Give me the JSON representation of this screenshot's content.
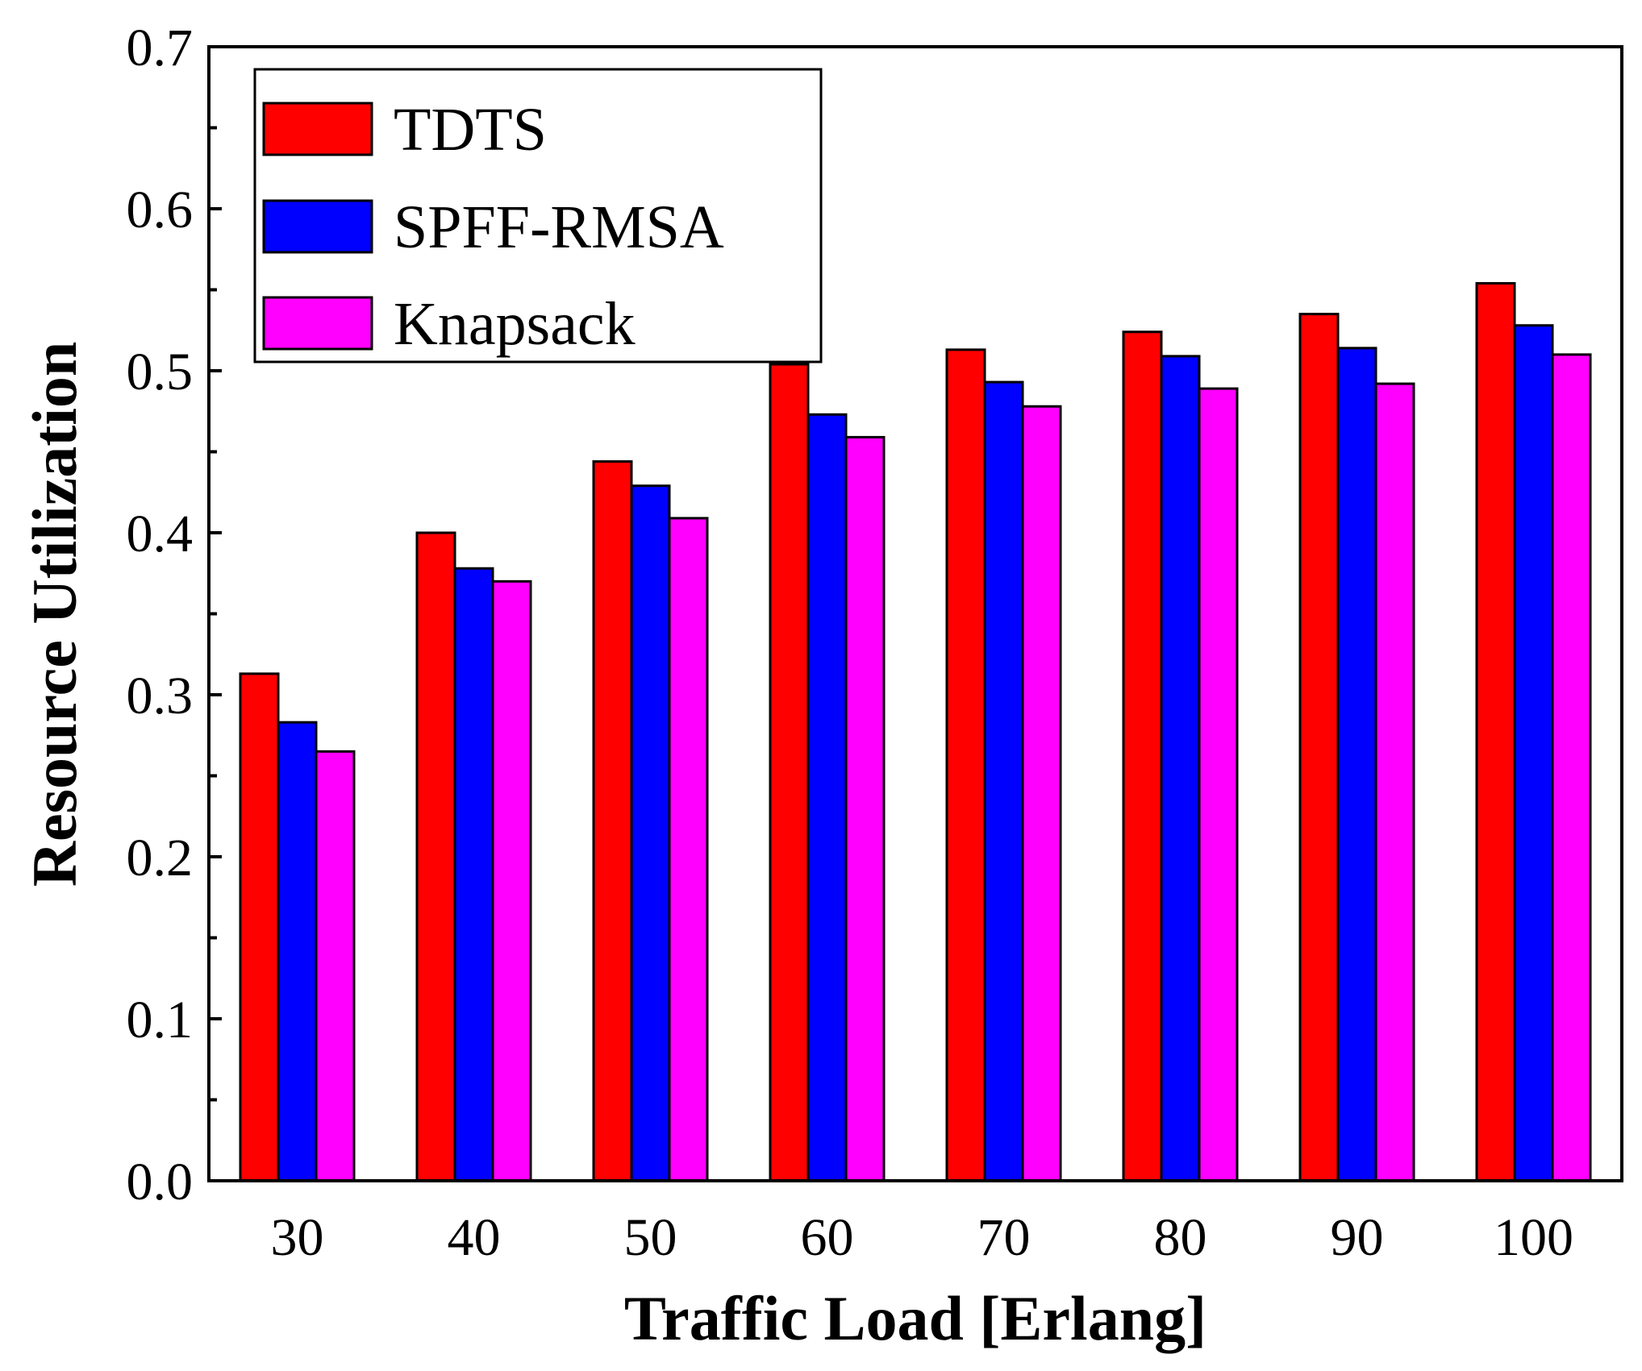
{
  "chart_data": {
    "type": "bar",
    "title": "",
    "xlabel": "Traffic Load [Erlang]",
    "ylabel": "Resource Utilization",
    "categories": [
      "30",
      "40",
      "50",
      "60",
      "70",
      "80",
      "90",
      "100"
    ],
    "series": [
      {
        "name": "TDTS",
        "color": "#ff0000",
        "values": [
          0.313,
          0.4,
          0.444,
          0.504,
          0.513,
          0.524,
          0.535,
          0.554
        ]
      },
      {
        "name": "SPFF-RMSA",
        "color": "#0000ff",
        "values": [
          0.283,
          0.378,
          0.429,
          0.473,
          0.493,
          0.509,
          0.514,
          0.528
        ]
      },
      {
        "name": "Knapsack",
        "color": "#ff00ff",
        "values": [
          0.265,
          0.37,
          0.409,
          0.459,
          0.478,
          0.489,
          0.492,
          0.51
        ]
      }
    ],
    "ylim": [
      0.0,
      0.7
    ],
    "yticks": [
      "0.0",
      "0.1",
      "0.2",
      "0.3",
      "0.4",
      "0.5",
      "0.6",
      "0.7"
    ],
    "grid": false,
    "legend_position": "top-left"
  }
}
